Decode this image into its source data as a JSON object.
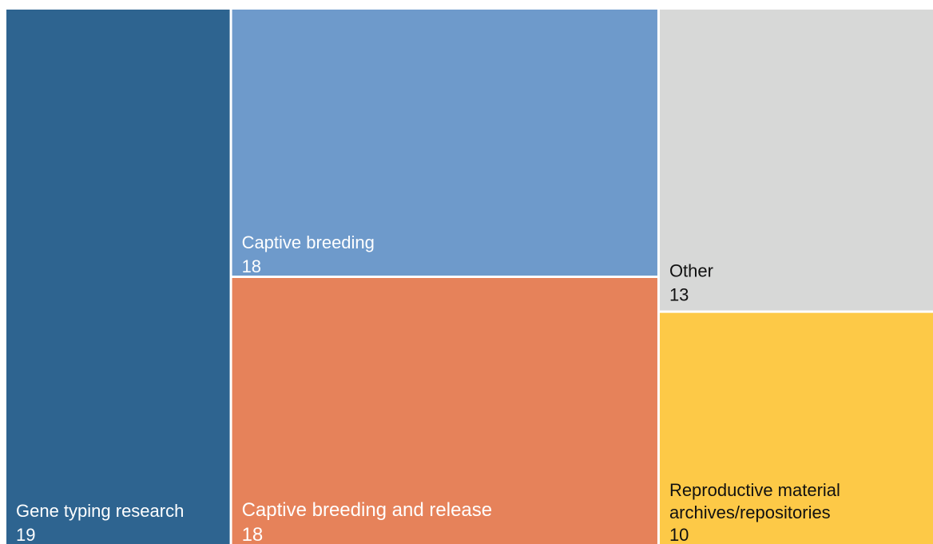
{
  "chart_data": {
    "type": "treemap",
    "title": "",
    "items": [
      {
        "label": "Gene typing research",
        "value": 19,
        "color": "#2E6490",
        "text_color": "#FFFFFF"
      },
      {
        "label": "Captive breeding",
        "value": 18,
        "color": "#6E9ACB",
        "text_color": "#FFFFFF"
      },
      {
        "label": "Captive breeding and release",
        "value": 18,
        "color": "#E6825A",
        "text_color": "#FFFFFF"
      },
      {
        "label": "Other",
        "value": 13,
        "color": "#D7D8D7",
        "text_color": "#111111"
      },
      {
        "label": "Reproductive material archives/repositories",
        "value": 10,
        "color": "#FDC947",
        "text_color": "#111111"
      }
    ]
  }
}
